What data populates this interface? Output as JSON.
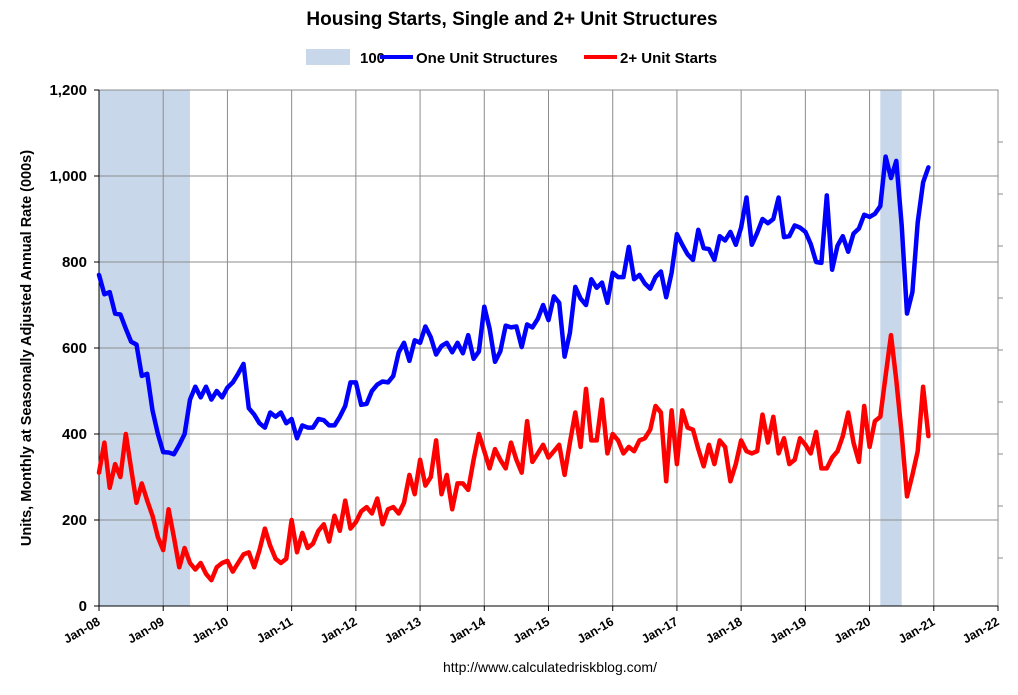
{
  "chart_data": {
    "type": "line",
    "title": "Housing Starts, Single and 2+ Unit Structures",
    "ylabel": "Units, Monthly at Seasonally Adjusted Annual Rate (000s)",
    "xlabel": "",
    "source": "http://www.calculatedriskblog.com/",
    "ylim": [
      0,
      1200
    ],
    "yticks": [
      "0",
      "200",
      "400",
      "600",
      "800",
      "1,000",
      "1,200"
    ],
    "xlim": [
      "2008-01",
      "2022-01"
    ],
    "xticks": [
      "Jan-08",
      "Jan-09",
      "Jan-10",
      "Jan-11",
      "Jan-12",
      "Jan-13",
      "Jan-14",
      "Jan-15",
      "Jan-16",
      "Jan-17",
      "Jan-18",
      "Jan-19",
      "Jan-20",
      "Jan-21",
      "Jan-22"
    ],
    "grid": true,
    "legend_position": "top",
    "recessions": {
      "name": "100",
      "color": "#c9d7ea",
      "periods": [
        [
          "2008-01",
          "2009-06"
        ],
        [
          "2020-03",
          "2020-07"
        ]
      ]
    },
    "start_month": "2008-01",
    "series": [
      {
        "name": "One Unit Structures",
        "color": "#0000ff",
        "values": [
          770,
          725,
          730,
          680,
          678,
          645,
          615,
          608,
          535,
          540,
          455,
          400,
          358,
          357,
          353,
          375,
          400,
          480,
          510,
          485,
          510,
          480,
          500,
          485,
          508,
          520,
          540,
          563,
          460,
          445,
          425,
          415,
          450,
          440,
          450,
          425,
          435,
          390,
          420,
          415,
          415,
          435,
          432,
          420,
          420,
          440,
          465,
          520,
          520,
          468,
          470,
          500,
          515,
          522,
          520,
          535,
          590,
          612,
          570,
          618,
          612,
          650,
          625,
          585,
          605,
          612,
          590,
          612,
          588,
          630,
          575,
          592,
          696,
          645,
          568,
          592,
          652,
          648,
          650,
          602,
          655,
          648,
          668,
          700,
          665,
          720,
          705,
          580,
          635,
          742,
          715,
          700,
          760,
          740,
          752,
          705,
          775,
          765,
          765,
          835,
          760,
          770,
          750,
          738,
          765,
          778,
          718,
          775,
          865,
          840,
          818,
          805,
          875,
          832,
          830,
          805,
          860,
          850,
          870,
          840,
          880,
          950,
          840,
          868,
          900,
          890,
          900,
          950,
          858,
          860,
          885,
          880,
          870,
          842,
          800,
          798,
          955,
          782,
          838,
          860,
          824,
          866,
          878,
          910,
          905,
          912,
          930,
          1045,
          995,
          1035,
          885,
          680,
          730,
          892,
          985,
          1020
        ]
      },
      {
        "name": "2+ Unit Starts",
        "color": "#ff0000",
        "values": [
          310,
          380,
          275,
          330,
          300,
          400,
          320,
          240,
          285,
          245,
          210,
          160,
          130,
          225,
          160,
          90,
          135,
          100,
          85,
          100,
          75,
          60,
          90,
          100,
          105,
          80,
          100,
          120,
          125,
          90,
          130,
          180,
          140,
          110,
          100,
          110,
          200,
          125,
          170,
          135,
          145,
          175,
          190,
          150,
          210,
          175,
          245,
          180,
          195,
          220,
          230,
          215,
          250,
          190,
          225,
          230,
          215,
          240,
          305,
          260,
          340,
          280,
          300,
          385,
          260,
          305,
          225,
          285,
          285,
          270,
          340,
          400,
          360,
          320,
          365,
          340,
          320,
          380,
          340,
          310,
          430,
          335,
          355,
          375,
          345,
          360,
          375,
          305,
          380,
          450,
          370,
          505,
          385,
          385,
          480,
          355,
          400,
          385,
          355,
          370,
          360,
          385,
          390,
          410,
          465,
          450,
          290,
          455,
          330,
          455,
          415,
          410,
          365,
          325,
          375,
          330,
          385,
          370,
          290,
          330,
          385,
          360,
          355,
          360,
          445,
          380,
          440,
          355,
          390,
          330,
          340,
          390,
          375,
          355,
          405,
          320,
          320,
          345,
          360,
          395,
          450,
          380,
          335,
          465,
          370,
          430,
          440,
          535,
          630,
          525,
          400,
          255,
          305,
          360,
          510,
          395
        ]
      }
    ]
  }
}
